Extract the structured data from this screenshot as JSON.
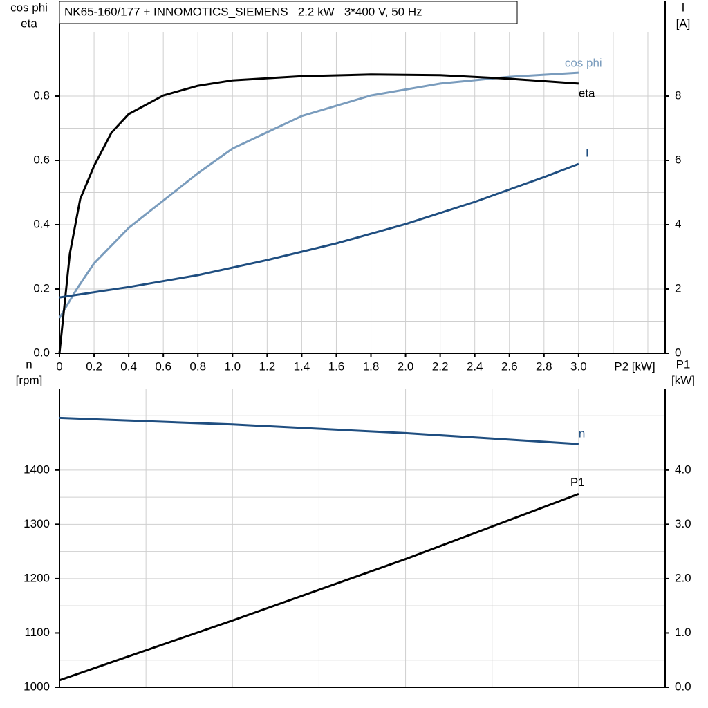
{
  "chart_data": [
    {
      "type": "line",
      "title": "NK65-160/177 + INNOMOTICS_SIEMENS   2.2 kW   3*400 V, 50 Hz",
      "ylabel": [
        "cos phi",
        "eta"
      ],
      "y2label": [
        "I",
        "[A]"
      ],
      "xlabel": "P2 [kW]",
      "xlim": [
        0,
        3.5
      ],
      "xticks": [
        0,
        0.2,
        0.4,
        0.6,
        0.8,
        {
          "value": 1,
          "label": "1.0"
        },
        1.2,
        1.4,
        1.6,
        1.8,
        {
          "value": 2,
          "label": "2.0"
        },
        2.2,
        2.4,
        2.6,
        2.8,
        {
          "value": 3,
          "label": "3.0"
        }
      ],
      "xgrid_minor": [
        3.2,
        3.4
      ],
      "ylim": [
        0,
        1
      ],
      "yticks": [
        {
          "value": 0,
          "label": "0.0"
        },
        0.2,
        0.4,
        0.6,
        0.8
      ],
      "ygrid_minor": [
        0.1,
        0.3,
        0.5,
        0.7,
        0.9
      ],
      "y2lim": [
        0,
        10
      ],
      "y2ticks": [
        0,
        2,
        4,
        6,
        8
      ],
      "grid": true,
      "series": [
        {
          "name": "cos phi",
          "color": "#7a9cbd",
          "x": [
            0,
            0.1,
            0.2,
            0.4,
            0.6,
            0.8,
            1.0,
            1.4,
            1.8,
            2.2,
            2.6,
            3.0
          ],
          "values": [
            0.11,
            0.2,
            0.28,
            0.39,
            0.475,
            0.56,
            0.637,
            0.738,
            0.802,
            0.839,
            0.86,
            0.873
          ]
        },
        {
          "name": "eta",
          "color": "#000000",
          "x": [
            0,
            0.06,
            0.12,
            0.2,
            0.3,
            0.4,
            0.6,
            0.8,
            1.0,
            1.4,
            1.8,
            2.2,
            2.6,
            3.0
          ],
          "values": [
            0,
            0.31,
            0.48,
            0.583,
            0.686,
            0.744,
            0.802,
            0.832,
            0.849,
            0.862,
            0.867,
            0.865,
            0.854,
            0.839
          ]
        },
        {
          "name": "I",
          "color": "#1f4e80",
          "axis": "y2",
          "x": [
            0,
            0.4,
            0.8,
            1.2,
            1.6,
            2.0,
            2.4,
            2.8,
            3.0
          ],
          "values": [
            1.74,
            2.06,
            2.43,
            2.9,
            3.42,
            4.02,
            4.71,
            5.48,
            5.89
          ]
        }
      ]
    },
    {
      "type": "line",
      "ylabel": [
        "n",
        "[rpm]"
      ],
      "y2label": [
        "P1",
        "[kW]"
      ],
      "xlim": [
        0,
        3.5
      ],
      "xgrid_minor": [
        0.5,
        1,
        1.5,
        2,
        2.5,
        3
      ],
      "ylim": [
        1000,
        1550
      ],
      "yticks": [
        1000,
        1100,
        1200,
        1300,
        1400
      ],
      "ygrid_minor": [
        1050,
        1150,
        1250,
        1350,
        1450,
        1500
      ],
      "y2lim": [
        0,
        5.5
      ],
      "y2ticks": [
        {
          "value": 0,
          "label": "0.0"
        },
        {
          "value": 1,
          "label": "1.0"
        },
        {
          "value": 2,
          "label": "2.0"
        },
        {
          "value": 3,
          "label": "3.0"
        },
        {
          "value": 4,
          "label": "4.0"
        }
      ],
      "grid": true,
      "series": [
        {
          "name": "n",
          "color": "#1f4e80",
          "x": [
            0,
            1.0,
            2.0,
            3.0
          ],
          "values": [
            1496,
            1484,
            1468,
            1448
          ]
        },
        {
          "name": "P1",
          "color": "#000000",
          "axis": "y2",
          "x": [
            0,
            1.0,
            2.0,
            3.0
          ],
          "values": [
            0.13,
            1.23,
            2.36,
            3.56
          ]
        }
      ]
    }
  ]
}
